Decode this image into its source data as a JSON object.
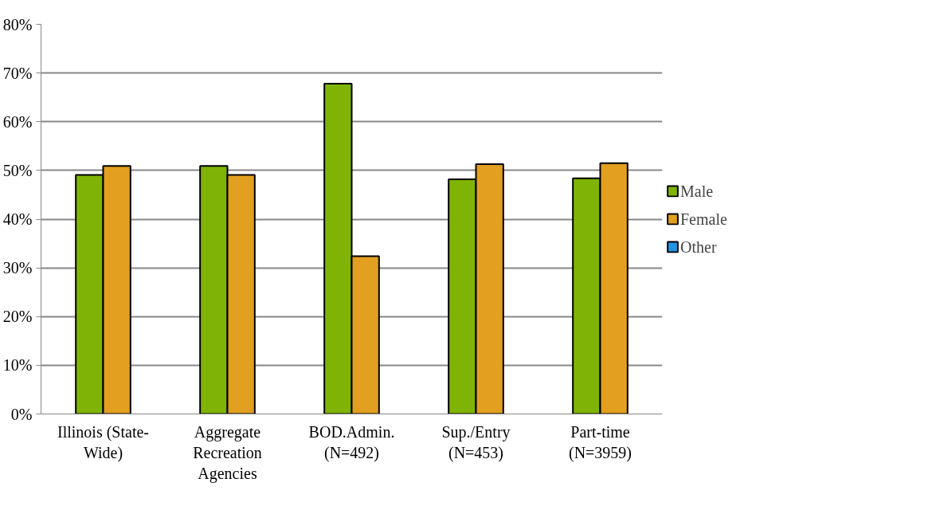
{
  "chart_data": {
    "type": "bar",
    "categories": [
      "Illinois (State-\nWide)",
      "Aggregate\nRecreation\nAgencies",
      "BOD.Admin.\n(N=492)",
      "Sup./Entry\n(N=453)",
      "Part-time\n(N=3959)"
    ],
    "series": [
      {
        "name": "Male",
        "color": "#7fb406",
        "values": [
          49.1,
          50.9,
          67.8,
          48.2,
          48.4
        ]
      },
      {
        "name": "Female",
        "color": "#e29f20",
        "values": [
          50.9,
          49.1,
          32.4,
          51.3,
          51.5
        ]
      },
      {
        "name": "Other",
        "color": "#2196e0",
        "values": [
          null,
          null,
          null,
          null,
          null
        ]
      }
    ],
    "ylim": [
      0,
      80
    ],
    "yticks": [
      {
        "value": 0,
        "label": "0%"
      },
      {
        "value": 10,
        "label": "10%"
      },
      {
        "value": 20,
        "label": "20%"
      },
      {
        "value": 30,
        "label": "30%"
      },
      {
        "value": 40,
        "label": "40%"
      },
      {
        "value": 50,
        "label": "50%"
      },
      {
        "value": 60,
        "label": "60%"
      },
      {
        "value": 70,
        "label": "70%"
      },
      {
        "value": 80,
        "label": "80%"
      }
    ],
    "grid": "y",
    "legend": "right"
  }
}
